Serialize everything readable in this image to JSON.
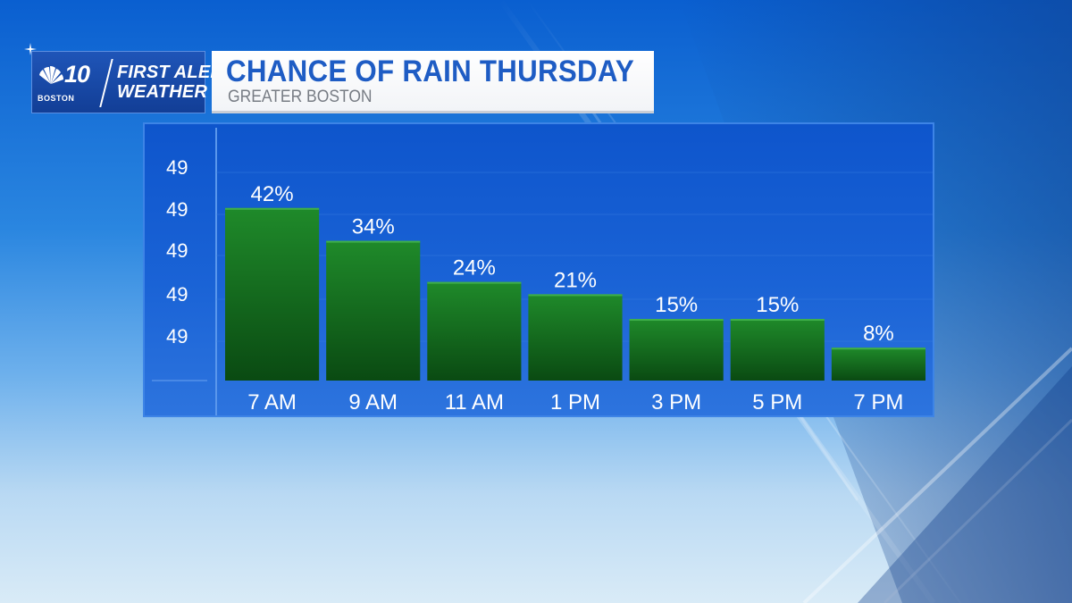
{
  "logo": {
    "number": "10",
    "city": "BOSTON",
    "line1": "FIRST ALERT",
    "line2": "WEATHER"
  },
  "header": {
    "title": "CHANCE OF RAIN THURSDAY",
    "subtitle": "GREATER BOSTON"
  },
  "colors": {
    "bar_top": "#1f8a2a",
    "bar_bottom": "#0a4a12",
    "title": "#1e5cc4",
    "panel": "#1a63d6"
  },
  "chart_data": {
    "type": "bar",
    "title": "CHANCE OF RAIN THURSDAY",
    "subtitle": "GREATER BOSTON",
    "categories": [
      "7 AM",
      "9 AM",
      "11 AM",
      "1 PM",
      "3 PM",
      "5 PM",
      "7 PM"
    ],
    "values": [
      42,
      34,
      24,
      21,
      15,
      15,
      8
    ],
    "value_labels": [
      "42%",
      "34%",
      "24%",
      "21%",
      "15%",
      "15%",
      "8%"
    ],
    "y_tick_labels": [
      "49",
      "49",
      "49",
      "49",
      "49"
    ],
    "ylim": [
      0,
      100
    ],
    "unit": "%",
    "grid": true,
    "legend": "none"
  }
}
